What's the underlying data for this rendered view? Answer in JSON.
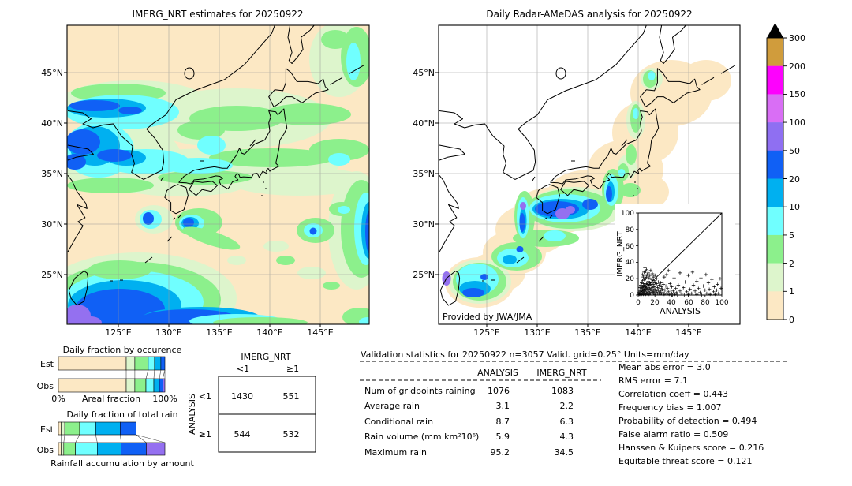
{
  "chart_data": {
    "left_map": {
      "type": "map",
      "title": "IMERG_NRT estimates for 20250922",
      "lat_ticks": [
        "45°N",
        "40°N",
        "35°N",
        "30°N",
        "25°N"
      ],
      "lon_ticks": [
        "125°E",
        "130°E",
        "135°E",
        "140°E",
        "145°E"
      ]
    },
    "right_map": {
      "type": "map",
      "title": "Daily Radar-AMeDAS analysis for 20250922",
      "lat_ticks": [
        "45°N",
        "40°N",
        "35°N",
        "30°N",
        "25°N"
      ],
      "lon_ticks": [
        "125°E",
        "130°E",
        "135°E",
        "140°E",
        "145°E"
      ],
      "credit": "Provided by JWA/JMA"
    },
    "colorbar": {
      "type": "colorbar",
      "units": "mm/day",
      "tick_labels": [
        "300",
        "200",
        "150",
        "100",
        "50",
        "20",
        "10",
        "5",
        "2",
        "1",
        "0"
      ],
      "colors_top_to_bottom": [
        "#d09c3c",
        "#fd02fd",
        "#d96ef5",
        "#8f6ff2",
        "#1060f5",
        "#00b0f0",
        "#70ffff",
        "#8cf08c",
        "#ddf5cc",
        "#fce8c4"
      ],
      "overflow_color": "#000000"
    },
    "occurrence": {
      "type": "stacked_bar",
      "title": "Daily fraction by occurence",
      "rows": [
        "Est",
        "Obs"
      ],
      "x_left_label": "0%",
      "x_center_label": "Areal fraction",
      "x_right_label": "100%",
      "bin_colors": [
        "#fce8c4",
        "#ddf5cc",
        "#8cf08c",
        "#70ffff",
        "#00b0f0",
        "#1060f5",
        "#9470f0"
      ],
      "series": [
        {
          "name": "Est",
          "fractions": [
            63.7,
            8.1,
            12.6,
            5.9,
            5.9,
            3.8,
            0
          ]
        },
        {
          "name": "Obs",
          "fractions": [
            63.7,
            8.1,
            10.4,
            7.4,
            5.2,
            3.2,
            2.0
          ]
        }
      ]
    },
    "total_rain": {
      "type": "stacked_bar",
      "title": "Daily fraction of total rain",
      "caption": "Rainfall accumulation by amount",
      "rows": [
        "Est",
        "Obs"
      ],
      "bin_colors": [
        "#fce8c4",
        "#ddf5cc",
        "#8cf08c",
        "#70ffff",
        "#00b0f0",
        "#1060f5",
        "#9470f0"
      ],
      "series": [
        {
          "name": "Est",
          "fractions": [
            2.5,
            3.5,
            14.0,
            15.0,
            23.0,
            15.0,
            0
          ]
        },
        {
          "name": "Obs",
          "fractions": [
            2.5,
            2.5,
            11.0,
            20.5,
            22.5,
            23.5,
            17.5
          ]
        }
      ]
    },
    "contingency": {
      "type": "table",
      "col_group": "IMERG_NRT",
      "row_group": "ANALYSIS",
      "col_labels": [
        "<1",
        "≥1"
      ],
      "row_labels": [
        "<1",
        "≥1"
      ],
      "values": [
        [
          "1430",
          "551"
        ],
        [
          "544",
          "532"
        ]
      ]
    },
    "validation_table": {
      "type": "table",
      "title": "Validation statistics for 20250922  n=3057 Valid. grid=0.25° Units=mm/day",
      "columns": [
        "ANALYSIS",
        "IMERG_NRT"
      ],
      "rows": [
        {
          "label": "Num of gridpoints raining",
          "analysis": "1076",
          "imerg": "1083"
        },
        {
          "label": "Average rain",
          "analysis": "3.1",
          "imerg": "2.2"
        },
        {
          "label": "Conditional rain",
          "analysis": "8.7",
          "imerg": "6.3"
        },
        {
          "label": "Rain volume (mm km²10⁶)",
          "analysis": "5.9",
          "imerg": "4.3"
        },
        {
          "label": "Maximum rain",
          "analysis": "95.2",
          "imerg": "34.5"
        }
      ]
    },
    "scores": {
      "type": "list",
      "items": [
        {
          "label": "Mean abs error",
          "value": "3.0"
        },
        {
          "label": "RMS error",
          "value": "7.1"
        },
        {
          "label": "Correlation coeff",
          "value": "0.443"
        },
        {
          "label": "Frequency bias",
          "value": "1.007"
        },
        {
          "label": "Probability of detection",
          "value": "0.494"
        },
        {
          "label": "False alarm ratio",
          "value": "0.509"
        },
        {
          "label": "Hanssen & Kuipers score",
          "value": "0.216"
        },
        {
          "label": "Equitable threat score",
          "value": "0.121"
        }
      ]
    },
    "scatter": {
      "type": "scatter",
      "xlabel": "ANALYSIS",
      "ylabel": "IMERG_NRT",
      "xlim": [
        0,
        100
      ],
      "ylim": [
        0,
        100
      ],
      "x_ticks": [
        "0",
        "20",
        "40",
        "60",
        "80",
        "100"
      ],
      "y_ticks": [
        "0",
        "20",
        "40",
        "60",
        "80",
        "100"
      ],
      "marker": "+",
      "diagonal": true,
      "points": [
        [
          1,
          1
        ],
        [
          1,
          3
        ],
        [
          2,
          1
        ],
        [
          2,
          5
        ],
        [
          2,
          9
        ],
        [
          3,
          2
        ],
        [
          3,
          6
        ],
        [
          3,
          12
        ],
        [
          4,
          1
        ],
        [
          4,
          4
        ],
        [
          4,
          8
        ],
        [
          4,
          15
        ],
        [
          5,
          2
        ],
        [
          5,
          6
        ],
        [
          5,
          10
        ],
        [
          5,
          18
        ],
        [
          5,
          25
        ],
        [
          6,
          1
        ],
        [
          6,
          4
        ],
        [
          6,
          9
        ],
        [
          6,
          14
        ],
        [
          6,
          22
        ],
        [
          7,
          3
        ],
        [
          7,
          7
        ],
        [
          7,
          12
        ],
        [
          7,
          19
        ],
        [
          7,
          28
        ],
        [
          8,
          2
        ],
        [
          8,
          5
        ],
        [
          8,
          10
        ],
        [
          8,
          16
        ],
        [
          8,
          24
        ],
        [
          8,
          33
        ],
        [
          9,
          1
        ],
        [
          9,
          6
        ],
        [
          9,
          11
        ],
        [
          9,
          20
        ],
        [
          9,
          29
        ],
        [
          10,
          3
        ],
        [
          10,
          8
        ],
        [
          10,
          14
        ],
        [
          10,
          22
        ],
        [
          10,
          31
        ],
        [
          11,
          2
        ],
        [
          11,
          7
        ],
        [
          11,
          13
        ],
        [
          11,
          25
        ],
        [
          12,
          4
        ],
        [
          12,
          9
        ],
        [
          12,
          17
        ],
        [
          12,
          27
        ],
        [
          13,
          1
        ],
        [
          13,
          6
        ],
        [
          13,
          12
        ],
        [
          13,
          21
        ],
        [
          14,
          3
        ],
        [
          14,
          8
        ],
        [
          14,
          15
        ],
        [
          14,
          24
        ],
        [
          15,
          2
        ],
        [
          15,
          7
        ],
        [
          15,
          13
        ],
        [
          15,
          30
        ],
        [
          16,
          5
        ],
        [
          16,
          11
        ],
        [
          16,
          19
        ],
        [
          17,
          3
        ],
        [
          17,
          9
        ],
        [
          17,
          16
        ],
        [
          17,
          26
        ],
        [
          18,
          2
        ],
        [
          18,
          6
        ],
        [
          18,
          13
        ],
        [
          18,
          22
        ],
        [
          19,
          4
        ],
        [
          19,
          10
        ],
        [
          19,
          18
        ],
        [
          20,
          1
        ],
        [
          20,
          7
        ],
        [
          20,
          15
        ],
        [
          20,
          24
        ],
        [
          21,
          3
        ],
        [
          21,
          11
        ],
        [
          22,
          5
        ],
        [
          22,
          14
        ],
        [
          22,
          20
        ],
        [
          23,
          2
        ],
        [
          23,
          9
        ],
        [
          24,
          6
        ],
        [
          24,
          16
        ],
        [
          25,
          3
        ],
        [
          25,
          12
        ],
        [
          26,
          1
        ],
        [
          26,
          8
        ],
        [
          27,
          5
        ],
        [
          27,
          15
        ],
        [
          28,
          2
        ],
        [
          28,
          10
        ],
        [
          29,
          7
        ],
        [
          30,
          3
        ],
        [
          30,
          13
        ],
        [
          31,
          1
        ],
        [
          31,
          22
        ],
        [
          32,
          6
        ],
        [
          33,
          11
        ],
        [
          34,
          2
        ],
        [
          34,
          25
        ],
        [
          35,
          8
        ],
        [
          36,
          4
        ],
        [
          36,
          30
        ],
        [
          37,
          1
        ],
        [
          38,
          14
        ],
        [
          39,
          6
        ],
        [
          40,
          2
        ],
        [
          40,
          10
        ],
        [
          41,
          0
        ],
        [
          42,
          5
        ],
        [
          43,
          21
        ],
        [
          44,
          1
        ],
        [
          45,
          8
        ],
        [
          46,
          3
        ],
        [
          47,
          0
        ],
        [
          48,
          12
        ],
        [
          50,
          5
        ],
        [
          50,
          27
        ],
        [
          52,
          2
        ],
        [
          54,
          9
        ],
        [
          55,
          0
        ],
        [
          56,
          16
        ],
        [
          58,
          4
        ],
        [
          60,
          1
        ],
        [
          60,
          24
        ],
        [
          62,
          7
        ],
        [
          64,
          2
        ],
        [
          65,
          28
        ],
        [
          66,
          12
        ],
        [
          68,
          5
        ],
        [
          70,
          1
        ],
        [
          70,
          17
        ],
        [
          72,
          8
        ],
        [
          74,
          3
        ],
        [
          75,
          21
        ],
        [
          76,
          0
        ],
        [
          78,
          11
        ],
        [
          80,
          6
        ],
        [
          81,
          25
        ],
        [
          82,
          2
        ],
        [
          84,
          15
        ],
        [
          85,
          7
        ],
        [
          86,
          1
        ],
        [
          88,
          19
        ],
        [
          90,
          4
        ],
        [
          91,
          10
        ],
        [
          92,
          1
        ],
        [
          94,
          6
        ],
        [
          95,
          13
        ],
        [
          96,
          2
        ],
        [
          98,
          20
        ],
        [
          99,
          8
        ]
      ]
    }
  }
}
